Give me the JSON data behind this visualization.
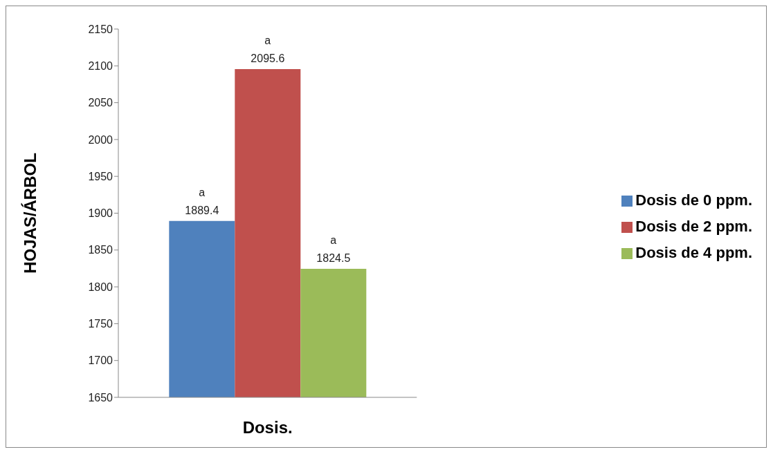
{
  "chart_data": {
    "type": "bar",
    "xlabel": "Dosis.",
    "ylabel": "HOJAS/ÁRBOL",
    "categories": [
      null
    ],
    "series": [
      {
        "name": "Dosis de 0 ppm.",
        "color": "#4f81bd",
        "values": [
          1889.4
        ],
        "value_labels": [
          "a\n1889.4"
        ]
      },
      {
        "name": "Dosis de 2 ppm.",
        "color": "#c0504d",
        "values": [
          2095.6
        ],
        "value_labels": [
          "a\n2095.6"
        ]
      },
      {
        "name": "Dosis de 4 ppm.",
        "color": "#9bbb59",
        "values": [
          1824.5
        ],
        "value_labels": [
          "a\n1824.5"
        ]
      }
    ],
    "ylim": [
      1650,
      2150
    ],
    "yticks": [
      1650,
      1700,
      1750,
      1800,
      1850,
      1900,
      1950,
      2000,
      2050,
      2100,
      2150
    ],
    "grid": false,
    "legend": "right"
  }
}
